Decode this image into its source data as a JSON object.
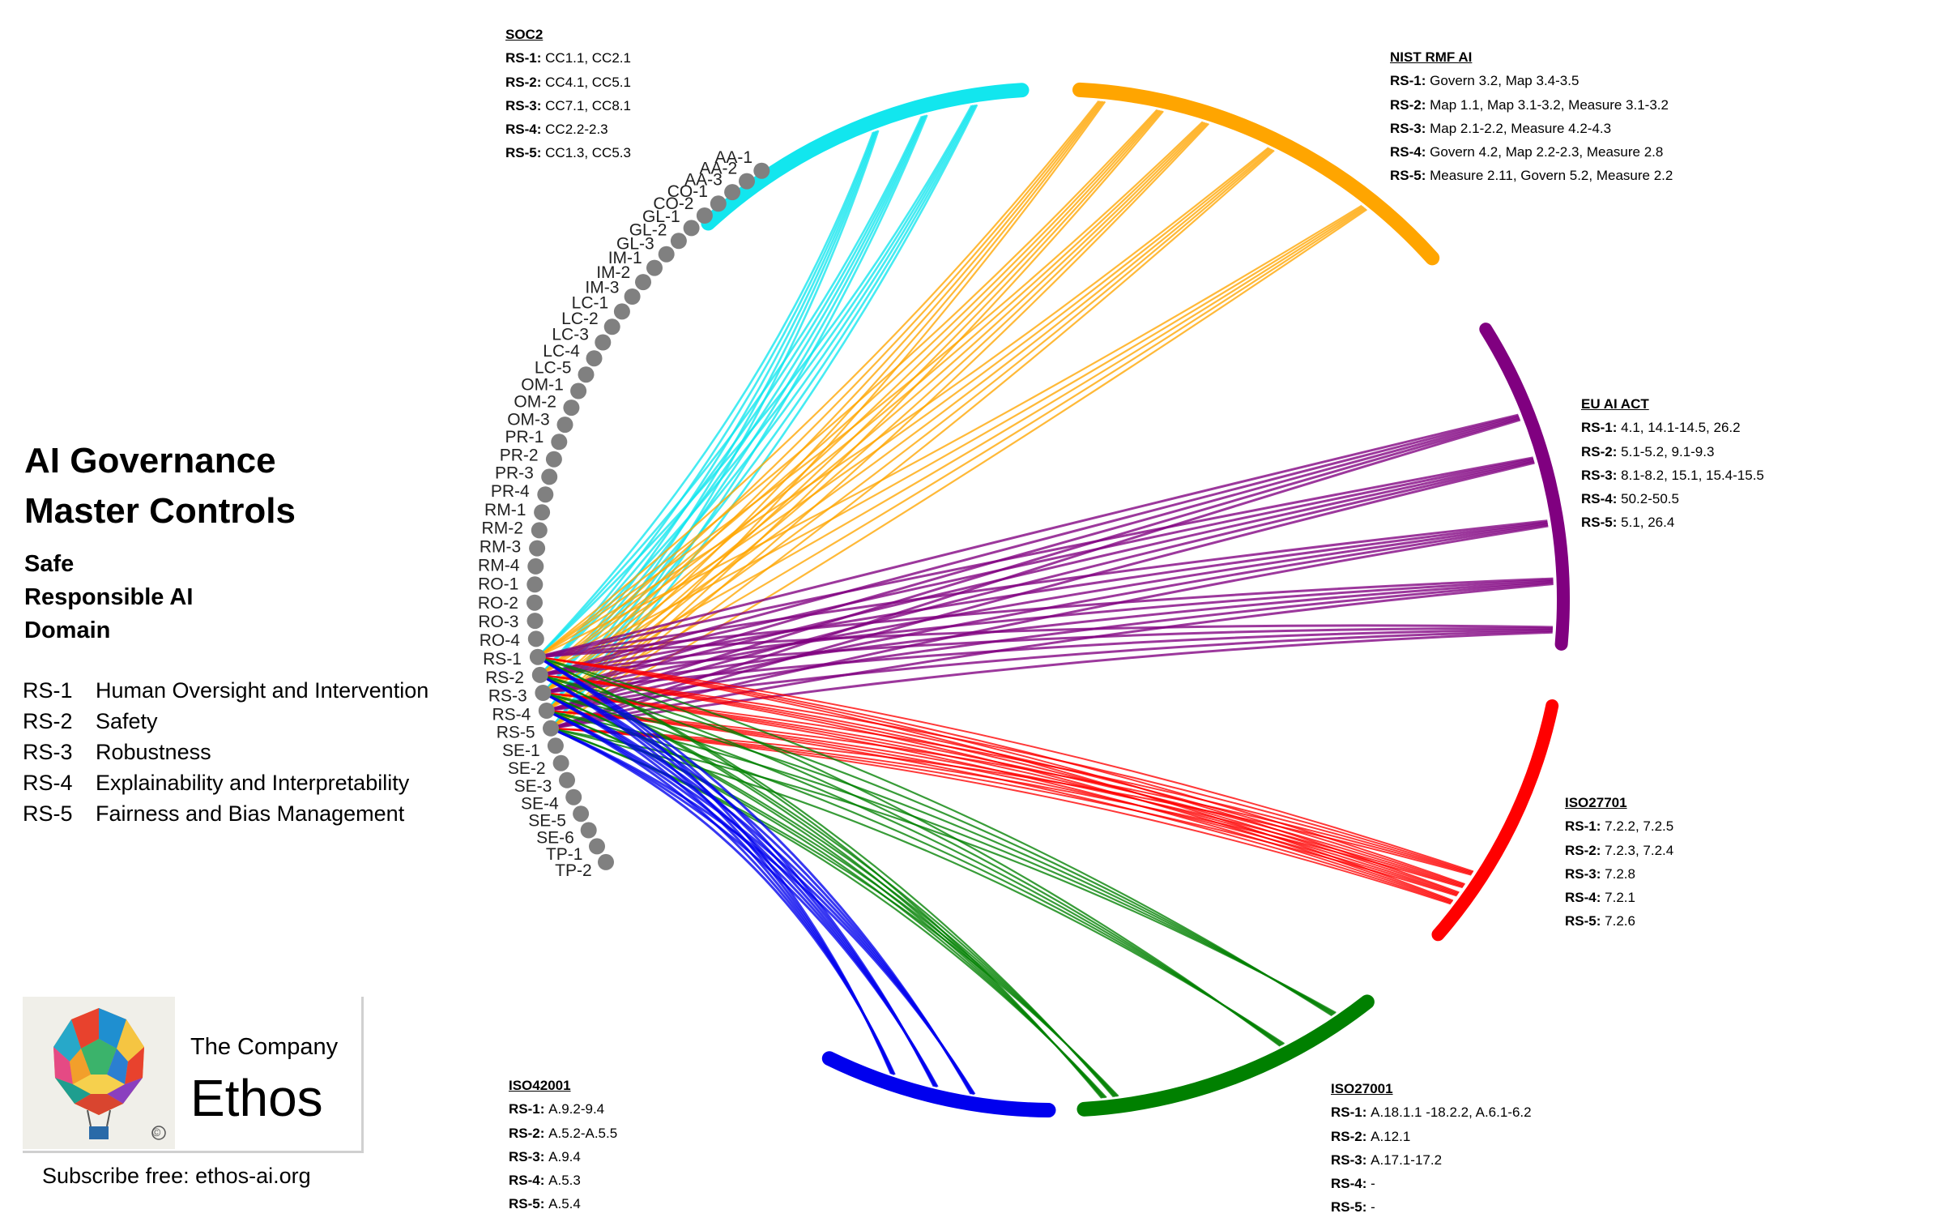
{
  "title": {
    "line1": "AI Governance",
    "line2": "Master Controls"
  },
  "subtitle": {
    "line1": "Safe",
    "line2": "Responsible AI",
    "line3": "Domain"
  },
  "legend": [
    {
      "code": "RS-1",
      "desc": "Human Oversight and Intervention"
    },
    {
      "code": "RS-2",
      "desc": "Safety"
    },
    {
      "code": "RS-3",
      "desc": "Robustness"
    },
    {
      "code": "RS-4",
      "desc": "Explainability and Interpretability"
    },
    {
      "code": "RS-5",
      "desc": "Fairness and Bias Management"
    }
  ],
  "logo": {
    "company_small": "The Company",
    "company_big": "Ethos",
    "copyright": "©"
  },
  "subscribe": "Subscribe free: ethos-ai.org",
  "controls": [
    "AA-1",
    "AA-2",
    "AA-3",
    "CO-1",
    "CO-2",
    "GL-1",
    "GL-2",
    "GL-3",
    "IM-1",
    "IM-2",
    "IM-3",
    "LC-1",
    "LC-2",
    "LC-3",
    "LC-4",
    "LC-5",
    "OM-1",
    "OM-2",
    "OM-3",
    "PR-1",
    "PR-2",
    "PR-3",
    "PR-4",
    "RM-1",
    "RM-2",
    "RM-3",
    "RM-4",
    "RO-1",
    "RO-2",
    "RO-3",
    "RO-4",
    "RS-1",
    "RS-2",
    "RS-3",
    "RS-4",
    "RS-5",
    "SE-1",
    "SE-2",
    "SE-3",
    "SE-4",
    "SE-5",
    "SE-6",
    "TP-1",
    "TP-2"
  ],
  "frameworks": {
    "soc2": {
      "title": "SOC2",
      "color": "#12e6ee",
      "rows": [
        {
          "code": "RS-1:",
          "text": "CC1.1, CC2.1"
        },
        {
          "code": "RS-2:",
          "text": "CC4.1, CC5.1"
        },
        {
          "code": "RS-3:",
          "text": "CC7.1, CC8.1"
        },
        {
          "code": "RS-4:",
          "text": "CC2.2-2.3"
        },
        {
          "code": "RS-5:",
          "text": "CC1.3,  CC5.3"
        }
      ]
    },
    "nist": {
      "title": "NIST RMF AI",
      "color": "#ffa500",
      "rows": [
        {
          "code": "RS-1:",
          "text": "Govern 3.2, Map 3.4-3.5"
        },
        {
          "code": "RS-2:",
          "text": "Map 1.1,  Map 3.1-3.2,  Measure 3.1-3.2"
        },
        {
          "code": "RS-3:",
          "text": "Map 2.1-2.2,  Measure 4.2-4.3"
        },
        {
          "code": "RS-4:",
          "text": "Govern 4.2,  Map 2.2-2.3,  Measure 2.8"
        },
        {
          "code": "RS-5:",
          "text": "Measure 2.11,  Govern 5.2,  Measure 2.2"
        }
      ]
    },
    "euai": {
      "title": "EU AI ACT",
      "color": "#800080",
      "rows": [
        {
          "code": "RS-1:",
          "text": "4.1, 14.1-14.5,  26.2"
        },
        {
          "code": "RS-2:",
          "text": "5.1-5.2,  9.1-9.3"
        },
        {
          "code": "RS-3:",
          "text": "8.1-8.2, 15.1, 15.4-15.5"
        },
        {
          "code": "RS-4:",
          "text": "50.2-50.5"
        },
        {
          "code": "RS-5:",
          "text": "5.1,  26.4"
        }
      ]
    },
    "iso27701": {
      "title": "ISO27701",
      "color": "#ff0000",
      "rows": [
        {
          "code": "RS-1:",
          "text": "7.2.2, 7.2.5"
        },
        {
          "code": "RS-2:",
          "text": "7.2.3,  7.2.4"
        },
        {
          "code": "RS-3:",
          "text": "7.2.8"
        },
        {
          "code": "RS-4:",
          "text": "7.2.1"
        },
        {
          "code": "RS-5:",
          "text": "7.2.6"
        }
      ]
    },
    "iso27001": {
      "title": "ISO27001",
      "color": "#008000",
      "rows": [
        {
          "code": "RS-1:",
          "text": "A.18.1.1 -18.2.2,  A.6.1-6.2"
        },
        {
          "code": "RS-2:",
          "text": "A.12.1"
        },
        {
          "code": "RS-3:",
          "text": "A.17.1-17.2"
        },
        {
          "code": "RS-4:",
          "text": "-"
        },
        {
          "code": "RS-5:",
          "text": "-"
        }
      ]
    },
    "iso42001": {
      "title": "ISO42001",
      "color": "#0000ee",
      "rows": [
        {
          "code": "RS-1:",
          "text": "A.9.2-9.4"
        },
        {
          "code": "RS-2:",
          "text": "A.5.2-A.5.5"
        },
        {
          "code": "RS-3:",
          "text": "A.9.4"
        },
        {
          "code": "RS-4:",
          "text": "A.5.3"
        },
        {
          "code": "RS-5:",
          "text": "A.5.4"
        }
      ]
    }
  },
  "node_color": "#808080"
}
